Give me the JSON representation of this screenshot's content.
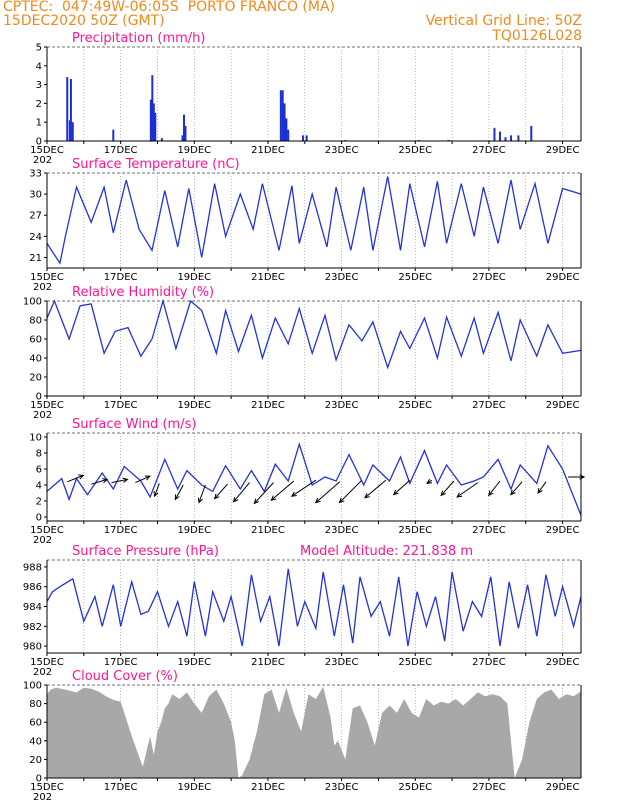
{
  "header": {
    "line1": "CPTEC:  047:49W-06:05S  PORTO FRANCO (MA)",
    "line2": "15DEC2020 50Z (GMT)",
    "right1": "Vertical Grid Line: 50Z",
    "right2": "TQ0126L028"
  },
  "x_ticks": [
    "15DEC",
    "17DEC",
    "19DEC",
    "21DEC",
    "23DEC",
    "25DEC",
    "27DEC",
    "29DEC"
  ],
  "year_fragment": "202",
  "colors": {
    "header": "#f08a1c",
    "title": "#ff1493",
    "line": "#2233dd",
    "bar": "#1a2fd6",
    "cloud": "#a8a8a8",
    "wind_arrow": "#000000"
  },
  "chart_data": [
    {
      "type": "bar",
      "title": "Precipitation (mm/h)",
      "ylim": [
        0,
        5
      ],
      "yticks": [
        0,
        1,
        2,
        3,
        4,
        5
      ],
      "x_unit": "days since 15DEC",
      "bars": [
        [
          0.55,
          3.4
        ],
        [
          0.62,
          1.1
        ],
        [
          0.65,
          3.3
        ],
        [
          0.7,
          1.0
        ],
        [
          1.8,
          0.6
        ],
        [
          2.82,
          2.2
        ],
        [
          2.86,
          3.5
        ],
        [
          2.9,
          2.0
        ],
        [
          2.94,
          1.5
        ],
        [
          3.12,
          0.15
        ],
        [
          3.68,
          0.3
        ],
        [
          3.72,
          1.4
        ],
        [
          3.76,
          0.8
        ],
        [
          6.35,
          2.7
        ],
        [
          6.4,
          2.7
        ],
        [
          6.45,
          2.0
        ],
        [
          6.5,
          1.2
        ],
        [
          6.55,
          0.6
        ],
        [
          6.95,
          0.3
        ],
        [
          7.05,
          0.3
        ],
        [
          8.1,
          0.05
        ],
        [
          10.1,
          0.05
        ],
        [
          10.9,
          0.05
        ],
        [
          12.15,
          0.7
        ],
        [
          12.3,
          0.5
        ],
        [
          12.45,
          0.2
        ],
        [
          12.6,
          0.3
        ],
        [
          12.8,
          0.3
        ],
        [
          13.15,
          0.8
        ]
      ]
    },
    {
      "type": "line",
      "title": "Surface Temperature (nC)",
      "ylim": [
        19.5,
        33
      ],
      "yticks": [
        21,
        24,
        27,
        30,
        33
      ],
      "x": [
        0,
        0.35,
        0.5,
        0.8,
        1.2,
        1.55,
        1.8,
        2.15,
        2.5,
        2.85,
        3.2,
        3.55,
        3.85,
        4.2,
        4.55,
        4.85,
        5.25,
        5.6,
        5.85,
        6.3,
        6.65,
        6.85,
        7.2,
        7.6,
        7.85,
        8.25,
        8.6,
        8.85,
        9.25,
        9.6,
        9.85,
        10.25,
        10.6,
        10.85,
        11.25,
        11.6,
        11.85,
        12.25,
        12.6,
        12.85,
        13.25,
        13.6,
        14,
        14.5
      ],
      "values": [
        23,
        20.2,
        24,
        31,
        26,
        31,
        24.5,
        32,
        25,
        22,
        30.5,
        22.5,
        30.8,
        21,
        31.5,
        24,
        30,
        25,
        31.5,
        22,
        31.2,
        23,
        30,
        22.5,
        31,
        22,
        31,
        22,
        32.5,
        22,
        31.5,
        22.5,
        31.8,
        23,
        31.5,
        24,
        31,
        23,
        32,
        25,
        31.5,
        23,
        30.8,
        30
      ],
      "point_style": "continuous"
    },
    {
      "type": "line",
      "title": "Relative Humidity (%)",
      "ylim": [
        0,
        100
      ],
      "yticks": [
        0,
        20,
        40,
        60,
        80,
        100
      ],
      "x": [
        0,
        0.2,
        0.6,
        0.9,
        1.2,
        1.55,
        1.85,
        2.2,
        2.55,
        2.85,
        3.15,
        3.5,
        3.9,
        4.2,
        4.6,
        4.85,
        5.2,
        5.55,
        5.85,
        6.2,
        6.55,
        6.85,
        7.2,
        7.55,
        7.85,
        8.2,
        8.55,
        8.85,
        9.25,
        9.6,
        9.85,
        10.25,
        10.6,
        10.85,
        11.25,
        11.6,
        11.85,
        12.25,
        12.6,
        12.85,
        13.3,
        13.6,
        14,
        14.5
      ],
      "values": [
        82,
        100,
        60,
        95,
        97,
        45,
        68,
        72,
        42,
        60,
        100,
        50,
        100,
        90,
        45,
        90,
        47,
        85,
        40,
        82,
        55,
        92,
        45,
        85,
        38,
        75,
        58,
        78,
        30,
        68,
        50,
        82,
        40,
        83,
        42,
        82,
        45,
        88,
        37,
        80,
        42,
        75,
        45,
        48
      ]
    },
    {
      "type": "line",
      "title": "Surface Wind (m/s)",
      "ylim": [
        -0.5,
        10.5
      ],
      "yticks": [
        0,
        2,
        4,
        6,
        8,
        10
      ],
      "x": [
        0,
        0.4,
        0.6,
        0.8,
        1.1,
        1.5,
        1.8,
        2.1,
        2.55,
        2.8,
        3.2,
        3.55,
        3.8,
        4.2,
        4.5,
        4.85,
        5.25,
        5.55,
        5.9,
        6.2,
        6.55,
        6.85,
        7.2,
        7.55,
        7.85,
        8.2,
        8.6,
        8.85,
        9.3,
        9.6,
        9.85,
        10.25,
        10.6,
        10.85,
        11.25,
        11.6,
        11.85,
        12.25,
        12.6,
        12.85,
        13.3,
        13.6,
        14,
        14.5
      ],
      "values": [
        3.2,
        4.8,
        2.2,
        4.8,
        2.8,
        5.5,
        3.5,
        6.3,
        4.5,
        2.5,
        7.2,
        3.5,
        5.8,
        4.0,
        3.2,
        6.4,
        3.5,
        5.8,
        3.2,
        6.6,
        4.5,
        9.1,
        4.0,
        5.0,
        4.5,
        7.8,
        4.0,
        6.5,
        4.5,
        7.5,
        4.2,
        8.3,
        4.2,
        6.5,
        4.0,
        4.5,
        5.0,
        7.2,
        3.5,
        6.5,
        4.2,
        8.9,
        6.0,
        0.2
      ],
      "arrows": {
        "x": [
          0.55,
          1.2,
          1.75,
          2.4,
          3.05,
          3.7,
          4.3,
          4.9,
          5.5,
          6.15,
          6.7,
          7.3,
          7.95,
          8.55,
          9.2,
          9.85,
          10.45,
          11.05,
          11.7,
          12.3,
          12.9,
          13.55,
          14.15
        ],
        "y": [
          4.4,
          4.1,
          4.3,
          4.3,
          4.2,
          4.0,
          4.0,
          4.1,
          4.3,
          4.3,
          4.5,
          4.6,
          4.4,
          4.6,
          4.6,
          4.6,
          4.6,
          4.5,
          4.3,
          4.5,
          4.4,
          4.4,
          5.0
        ],
        "u": [
          1.0,
          1.0,
          1.0,
          0.9,
          -0.3,
          -0.5,
          -0.4,
          -0.8,
          -1.0,
          -1.2,
          -1.4,
          -1.5,
          -1.5,
          -1.4,
          -1.3,
          -1.0,
          -0.3,
          -0.8,
          -1.3,
          -0.7,
          -0.7,
          -0.5,
          1.0
        ],
        "v": [
          0.4,
          0.3,
          0.2,
          0.4,
          -0.8,
          -0.9,
          -1.1,
          -0.9,
          -1.2,
          -1.3,
          -1.2,
          -1.0,
          -1.3,
          -1.4,
          -1.1,
          -0.9,
          -0.2,
          -0.9,
          -0.9,
          -0.9,
          -0.8,
          -0.7,
          0.0
        ]
      }
    },
    {
      "type": "line",
      "title": "Surface Pressure (hPa)",
      "annotation": "Model Altitude: 221.838  m",
      "ylim": [
        979.3,
        988.7
      ],
      "yticks": [
        980,
        982,
        984,
        986,
        988
      ],
      "x": [
        0,
        0.15,
        0.35,
        0.7,
        1.0,
        1.3,
        1.5,
        1.8,
        2.0,
        2.3,
        2.55,
        2.75,
        3.0,
        3.3,
        3.55,
        3.8,
        4.0,
        4.3,
        4.5,
        4.8,
        5.0,
        5.3,
        5.55,
        5.8,
        6.05,
        6.3,
        6.55,
        6.8,
        7.0,
        7.3,
        7.5,
        7.8,
        8.05,
        8.3,
        8.5,
        8.8,
        9.05,
        9.3,
        9.55,
        9.8,
        10.05,
        10.3,
        10.55,
        10.8,
        11.0,
        11.3,
        11.55,
        11.8,
        12.05,
        12.3,
        12.55,
        12.8,
        13.05,
        13.3,
        13.55,
        13.8,
        14.0,
        14.3,
        14.5
      ],
      "values": [
        984.5,
        985.5,
        986,
        986.8,
        982.5,
        985,
        982,
        986.2,
        982,
        986.5,
        983.2,
        983.5,
        985.5,
        982,
        984.5,
        981,
        986.5,
        981,
        985.5,
        982.5,
        985,
        980,
        987.2,
        982.5,
        985,
        980,
        987.8,
        982,
        984.5,
        981.8,
        987.5,
        981,
        986.2,
        980.3,
        987,
        983,
        984.5,
        981,
        987,
        980,
        985.5,
        982,
        985,
        980.5,
        987.5,
        981.5,
        984.5,
        983,
        987,
        980,
        986.5,
        981.8,
        986.2,
        981,
        987.2,
        983,
        986,
        982,
        985
      ]
    },
    {
      "type": "area",
      "title": "Cloud Cover (%)",
      "ylim": [
        0,
        100
      ],
      "yticks": [
        0,
        20,
        40,
        60,
        80,
        100
      ],
      "x": [
        0,
        0.1,
        0.25,
        0.5,
        0.8,
        1.0,
        1.2,
        1.4,
        1.6,
        1.8,
        2.0,
        2.3,
        2.6,
        2.8,
        2.9,
        3.0,
        3.1,
        3.2,
        3.3,
        3.4,
        3.6,
        3.8,
        4.0,
        4.2,
        4.4,
        4.6,
        4.8,
        5.0,
        5.1,
        5.2,
        5.3,
        5.5,
        5.7,
        5.9,
        6.1,
        6.3,
        6.5,
        6.7,
        6.9,
        7.1,
        7.3,
        7.5,
        7.7,
        7.8,
        7.9,
        8.0,
        8.1,
        8.3,
        8.5,
        8.7,
        8.9,
        9.1,
        9.3,
        9.5,
        9.7,
        9.9,
        10.1,
        10.3,
        10.5,
        10.7,
        10.9,
        11.1,
        11.3,
        11.5,
        11.7,
        11.9,
        12.1,
        12.3,
        12.5,
        12.7,
        12.9,
        13.1,
        13.3,
        13.5,
        13.7,
        13.9,
        14.1,
        14.3,
        14.5
      ],
      "values": [
        90,
        95,
        97,
        95,
        92,
        97,
        96,
        93,
        88,
        84,
        82,
        45,
        12,
        45,
        25,
        50,
        60,
        75,
        80,
        90,
        85,
        92,
        80,
        70,
        88,
        95,
        80,
        60,
        40,
        0,
        3,
        20,
        50,
        90,
        95,
        70,
        97,
        70,
        50,
        90,
        85,
        98,
        65,
        35,
        40,
        30,
        20,
        75,
        78,
        60,
        35,
        70,
        78,
        70,
        85,
        70,
        65,
        85,
        78,
        82,
        80,
        85,
        78,
        85,
        92,
        88,
        90,
        88,
        80,
        0,
        20,
        60,
        85,
        92,
        95,
        85,
        90,
        88,
        93
      ]
    }
  ]
}
